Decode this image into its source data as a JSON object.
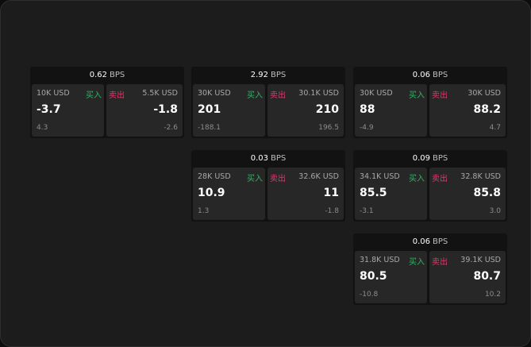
{
  "colors": {
    "buy": "#2fb463",
    "sell": "#e0386a"
  },
  "labels": {
    "buy": "买入",
    "sell": "卖出",
    "unit": "BPS"
  },
  "cards": [
    {
      "spread": "0.62",
      "bid": {
        "qty": "10K USD",
        "price": "-3.7",
        "change": "4.3"
      },
      "ask": {
        "qty": "5.5K USD",
        "price": "-1.8",
        "change": "-2.6"
      }
    },
    {
      "spread": "2.92",
      "bid": {
        "qty": "30K USD",
        "price": "201",
        "change": "-188.1"
      },
      "ask": {
        "qty": "30.1K USD",
        "price": "210",
        "change": "196.5"
      }
    },
    {
      "spread": "0.06",
      "bid": {
        "qty": "30K USD",
        "price": "88",
        "change": "-4.9"
      },
      "ask": {
        "qty": "30K USD",
        "price": "88.2",
        "change": "4.7"
      }
    },
    {
      "spread": "0.03",
      "bid": {
        "qty": "28K USD",
        "price": "10.9",
        "change": "1.3"
      },
      "ask": {
        "qty": "32.6K USD",
        "price": "11",
        "change": "-1.8"
      }
    },
    {
      "spread": "0.09",
      "bid": {
        "qty": "34.1K USD",
        "price": "85.5",
        "change": "-3.1"
      },
      "ask": {
        "qty": "32.8K USD",
        "price": "85.8",
        "change": "3.0"
      }
    },
    {
      "spread": "0.06",
      "bid": {
        "qty": "31.8K USD",
        "price": "80.5",
        "change": "-10.8"
      },
      "ask": {
        "qty": "39.1K USD",
        "price": "80.7",
        "change": "10.2"
      }
    }
  ]
}
